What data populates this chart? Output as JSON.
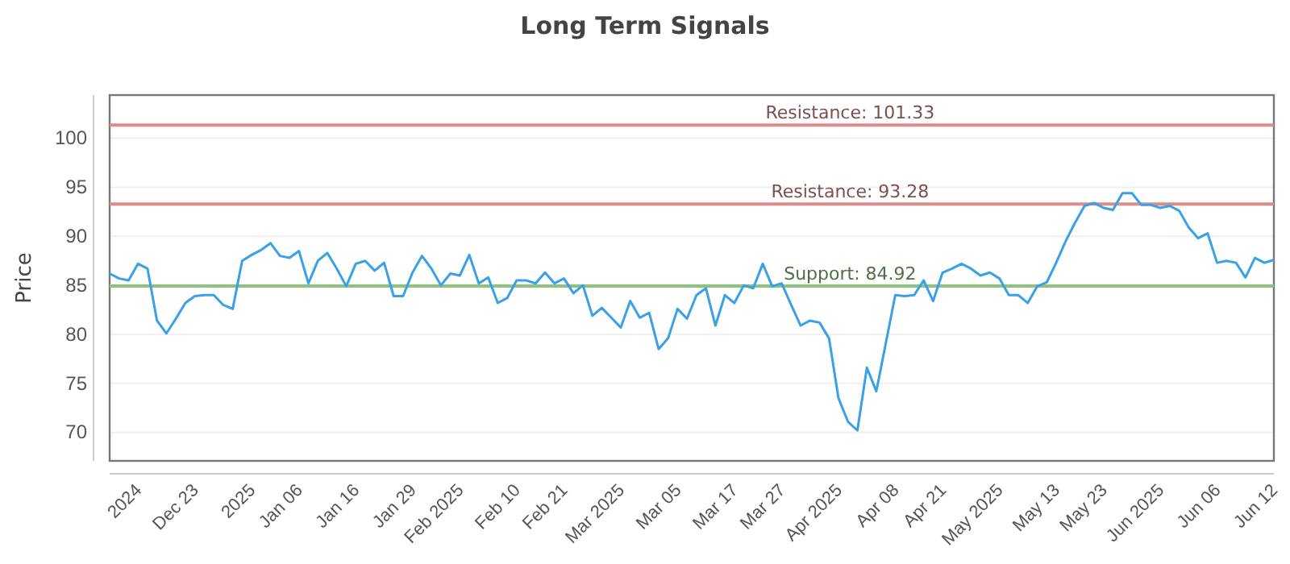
{
  "chart_data": {
    "type": "line",
    "title": "Long Term Signals",
    "ylabel": "Price",
    "categories": [
      null,
      null,
      null,
      "2024",
      null,
      null,
      null,
      null,
      null,
      "Dec 23",
      null,
      null,
      null,
      null,
      null,
      "2025",
      null,
      null,
      null,
      null,
      "Jan 06",
      null,
      null,
      null,
      null,
      null,
      "Jan 16",
      null,
      null,
      null,
      null,
      null,
      "Jan 29",
      null,
      null,
      null,
      null,
      "Feb 2025",
      null,
      null,
      null,
      null,
      null,
      "Feb 10",
      null,
      null,
      null,
      null,
      "Feb 21",
      null,
      null,
      null,
      null,
      null,
      "Mar 2025",
      null,
      null,
      null,
      null,
      null,
      "Mar 05",
      null,
      null,
      null,
      null,
      null,
      "Mar 17",
      null,
      null,
      null,
      null,
      "Mar 27",
      null,
      null,
      null,
      null,
      null,
      "Apr 2025",
      null,
      null,
      null,
      null,
      null,
      "Apr 08",
      null,
      null,
      null,
      null,
      "Apr 21",
      null,
      null,
      null,
      null,
      null,
      "May 2025",
      null,
      null,
      null,
      null,
      null,
      "May 13",
      null,
      null,
      null,
      null,
      "May 23",
      null,
      null,
      null,
      null,
      null,
      "Jun 2025",
      null,
      null,
      null,
      null,
      null,
      "Jun 06",
      null,
      null,
      null,
      null,
      null,
      "Jun 12"
    ],
    "series": [
      {
        "color": "#3aa0e8",
        "values": [
          86.2,
          85.7,
          85.5,
          87.2,
          86.7,
          81.4,
          80.1,
          81.6,
          83.2,
          83.9,
          84.0,
          84.0,
          83.0,
          82.6,
          87.5,
          88.1,
          88.6,
          89.3,
          88.0,
          87.8,
          88.5,
          85.2,
          87.5,
          88.3,
          86.7,
          84.9,
          87.2,
          87.5,
          86.5,
          87.3,
          83.9,
          83.9,
          86.3,
          88.0,
          86.7,
          85.0,
          86.2,
          86.0,
          88.1,
          85.2,
          85.8,
          83.2,
          83.7,
          85.5,
          85.5,
          85.2,
          86.3,
          85.2,
          85.7,
          84.2,
          85.0,
          81.9,
          82.7,
          81.7,
          80.7,
          83.4,
          81.7,
          82.2,
          78.5,
          79.6,
          82.6,
          81.6,
          84.0,
          84.7,
          80.9,
          84.0,
          83.2,
          85.0,
          84.7,
          87.2,
          84.9,
          85.2,
          83.0,
          80.9,
          81.4,
          81.2,
          79.6,
          73.5,
          71.1,
          70.2,
          76.6,
          74.2,
          79.1,
          84.0,
          83.9,
          84.0,
          85.5,
          83.4,
          86.3,
          86.7,
          87.2,
          86.7,
          86.0,
          86.3,
          85.7,
          84.0,
          84.0,
          83.2,
          84.9,
          85.3,
          87.3,
          89.5,
          91.4,
          93.1,
          93.4,
          92.9,
          92.7,
          94.4,
          94.4,
          93.2,
          93.2,
          92.9,
          93.1,
          92.6,
          90.9,
          89.8,
          90.3,
          87.3,
          87.5,
          87.3,
          85.8,
          87.8,
          87.3,
          87.6
        ]
      }
    ],
    "ylim": [
      67.1,
      104.4
    ],
    "yticks": [
      70,
      75,
      80,
      85,
      90,
      95,
      100
    ],
    "grid": "y",
    "marker": "none",
    "line_style": "solid",
    "ref_lines": [
      {
        "axis": "y",
        "value": 101.33,
        "label": "Resistance: 101.33",
        "color": "#e08a8a"
      },
      {
        "axis": "y",
        "value": 93.28,
        "label": "Resistance: 93.28",
        "color": "#e08a8a"
      },
      {
        "axis": "y",
        "value": 84.92,
        "label": "Support: 84.92",
        "color": "#8cc47e"
      }
    ]
  }
}
